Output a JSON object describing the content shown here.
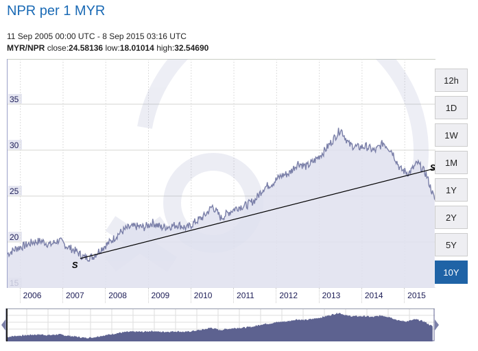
{
  "header": {
    "title": "NPR per 1 MYR",
    "date_range": "11 Sep 2005 00:00 UTC - 8 Sep 2015 03:16 UTC",
    "pair": "MYR/NPR",
    "close_label": "close:",
    "close": "24.58136",
    "low_label": "low:",
    "low": "18.01014",
    "high_label": "high:",
    "high": "32.54690"
  },
  "range_buttons": [
    {
      "label": "12h",
      "active": false
    },
    {
      "label": "1D",
      "active": false
    },
    {
      "label": "1W",
      "active": false
    },
    {
      "label": "1M",
      "active": false
    },
    {
      "label": "1Y",
      "active": false
    },
    {
      "label": "2Y",
      "active": false
    },
    {
      "label": "5Y",
      "active": false
    },
    {
      "label": "10Y",
      "active": true
    }
  ],
  "trendline": {
    "start_marker": "S",
    "end_marker": "S",
    "start": {
      "x": "2007.4",
      "y": 18.2
    },
    "end": {
      "x": "2015.7",
      "y": 28.0
    }
  },
  "colors": {
    "accent": "#1a6ab5",
    "active_button": "#1f63a6",
    "series_line": "#7a7fa8",
    "series_fill": "#dfe1ee",
    "navigator_fill": "#5d6290"
  },
  "chart_data": {
    "type": "area",
    "title": "NPR per 1 MYR",
    "xlabel": "",
    "ylabel": "",
    "ylim": [
      15,
      40
    ],
    "yticks": [
      15,
      20,
      25,
      30,
      35
    ],
    "xticks": [
      "2006",
      "2007",
      "2008",
      "2009",
      "2010",
      "2011",
      "2012",
      "2013",
      "2014",
      "2015"
    ],
    "grid": true,
    "legend": "none",
    "series": [
      {
        "name": "MYR/NPR",
        "x": [
          2005.7,
          2005.9,
          2006.1,
          2006.3,
          2006.5,
          2006.7,
          2006.9,
          2007.1,
          2007.3,
          2007.5,
          2007.7,
          2007.9,
          2008.1,
          2008.3,
          2008.5,
          2008.7,
          2008.9,
          2009.1,
          2009.3,
          2009.5,
          2009.7,
          2009.9,
          2010.1,
          2010.3,
          2010.5,
          2010.7,
          2010.9,
          2011.1,
          2011.3,
          2011.5,
          2011.7,
          2011.9,
          2012.1,
          2012.3,
          2012.5,
          2012.7,
          2012.9,
          2013.1,
          2013.3,
          2013.5,
          2013.7,
          2013.9,
          2014.1,
          2014.3,
          2014.5,
          2014.7,
          2014.9,
          2015.1,
          2015.3,
          2015.5,
          2015.7
        ],
        "values": [
          18.7,
          19.3,
          19.6,
          20.0,
          20.1,
          19.7,
          20.2,
          19.5,
          19.0,
          18.3,
          18.4,
          19.3,
          20.0,
          20.9,
          21.5,
          21.7,
          21.6,
          22.1,
          21.6,
          21.7,
          21.9,
          21.5,
          22.2,
          22.8,
          23.9,
          22.6,
          23.3,
          23.8,
          24.0,
          24.6,
          25.9,
          26.4,
          27.2,
          27.5,
          28.6,
          28.2,
          28.9,
          29.8,
          31.0,
          32.3,
          30.6,
          30.3,
          30.4,
          29.9,
          30.8,
          29.9,
          27.9,
          27.5,
          28.6,
          27.4,
          24.6
        ]
      }
    ]
  }
}
